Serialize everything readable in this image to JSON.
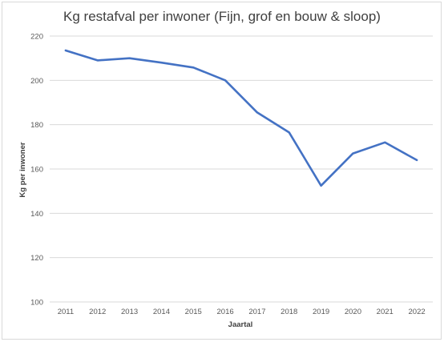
{
  "chart_data": {
    "type": "line",
    "title": "Kg restafval per inwoner (Fijn, grof en bouw & sloop)",
    "xlabel": "Jaartal",
    "ylabel": "Kg per inwoner",
    "categories": [
      "2011",
      "2012",
      "2013",
      "2014",
      "2015",
      "2016",
      "2017",
      "2018",
      "2019",
      "2020",
      "2021",
      "2022"
    ],
    "series": [
      {
        "values": [
          213.5,
          209,
          210,
          208,
          205.8,
          200,
          185.5,
          176.5,
          152.5,
          167,
          172,
          164
        ],
        "color": "#4472C4"
      }
    ],
    "ylim": [
      100,
      220
    ],
    "yticks": [
      100,
      120,
      140,
      160,
      180,
      200,
      220
    ],
    "grid": true,
    "legend": "none"
  }
}
